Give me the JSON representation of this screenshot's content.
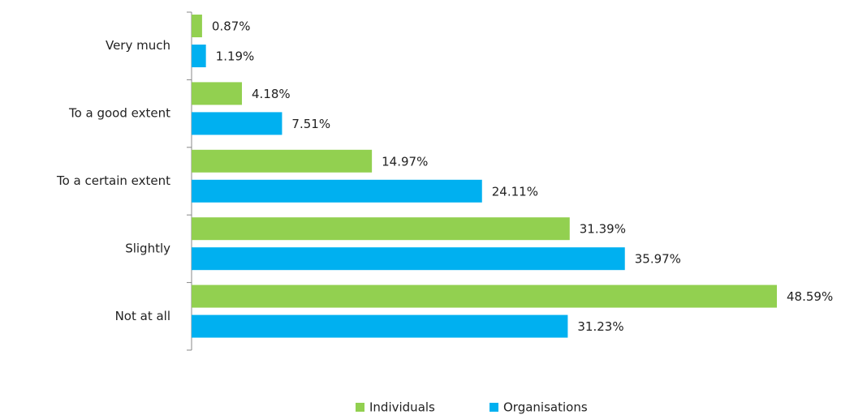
{
  "chart_data": {
    "type": "hbar",
    "categories": [
      "Very much",
      "To a good extent",
      "To a certain extent",
      "Slightly",
      "Not at all"
    ],
    "series": [
      {
        "name": "Individuals",
        "color": "#92d050",
        "values": [
          0.87,
          4.18,
          14.97,
          31.39,
          48.59
        ],
        "value_labels": [
          "0.87%",
          "4.18%",
          "14.97%",
          "31.39%",
          "48.59%"
        ]
      },
      {
        "name": "Organisations",
        "color": "#00b0f0",
        "values": [
          1.19,
          7.51,
          24.11,
          35.97,
          31.23
        ],
        "value_labels": [
          "1.19%",
          "7.51%",
          "24.11%",
          "35.97%",
          "31.23%"
        ]
      }
    ],
    "legend": "bottom"
  }
}
